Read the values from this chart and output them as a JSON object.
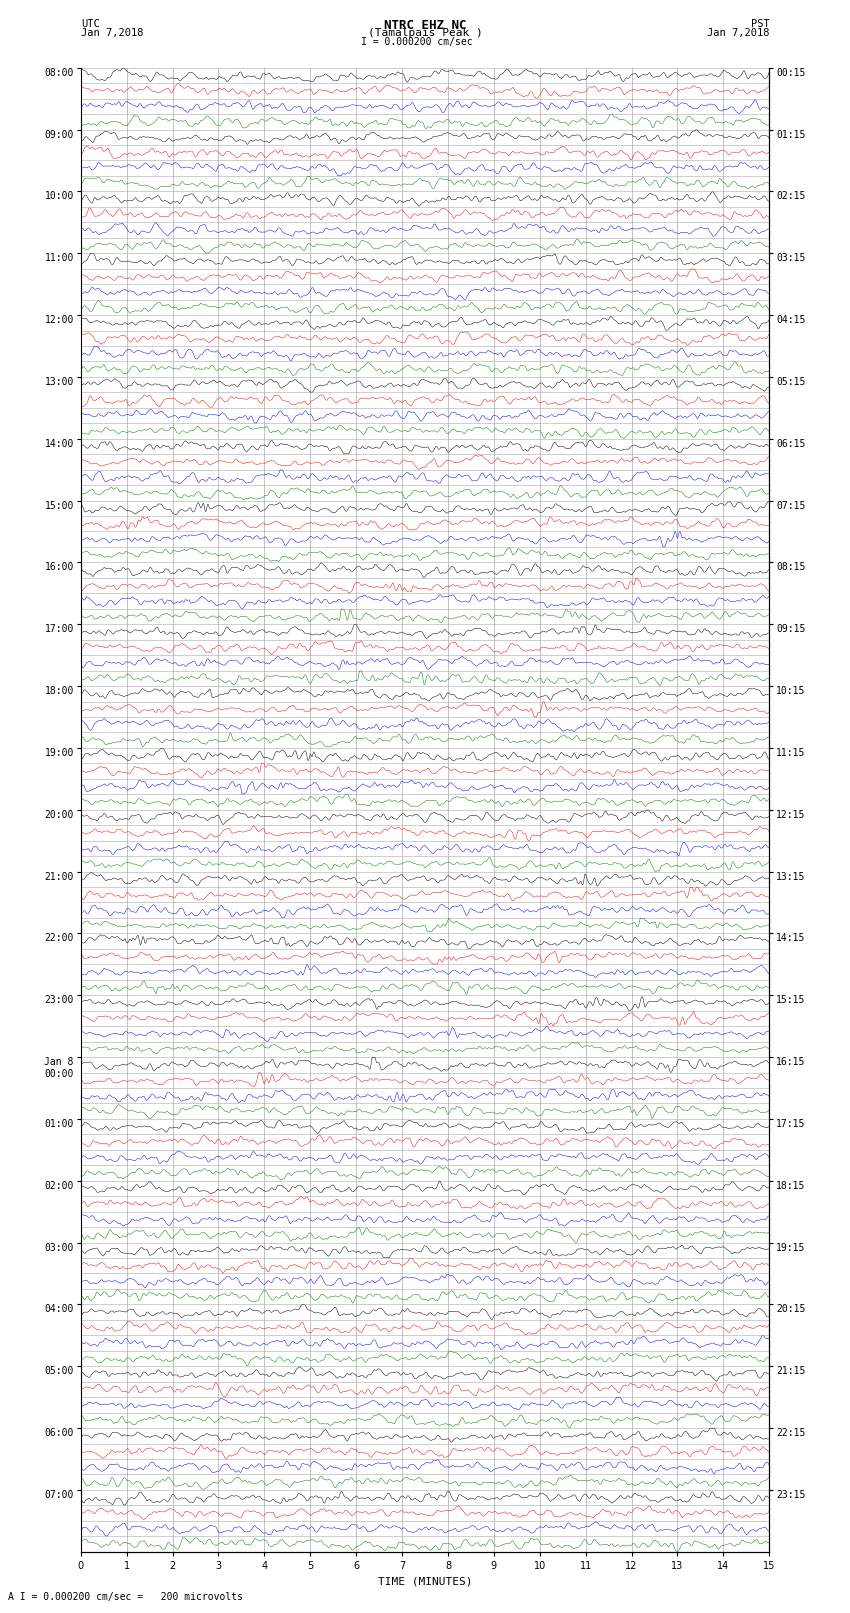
{
  "title_line1": "NTRC EHZ NC",
  "title_line2": "(Tamalpais Peak )",
  "title_scale": "I = 0.000200 cm/sec",
  "label_left_top": "UTC",
  "label_left_date": "Jan 7,2018",
  "label_right_top": "PST",
  "label_right_date": "Jan 7,2018",
  "xlabel": "TIME (MINUTES)",
  "footer": "A I = 0.000200 cm/sec =   200 microvolts",
  "num_rows": 24,
  "traces_per_row": 4,
  "minutes_per_row": 15,
  "trace_colors": [
    "black",
    "red",
    "blue",
    "green"
  ],
  "background_color": "white",
  "grid_color": "#aaaaaa",
  "utc_labels": [
    "08:00",
    "09:00",
    "10:00",
    "11:00",
    "12:00",
    "13:00",
    "14:00",
    "15:00",
    "16:00",
    "17:00",
    "18:00",
    "19:00",
    "20:00",
    "21:00",
    "22:00",
    "23:00",
    "Jan 8\n00:00",
    "01:00",
    "02:00",
    "03:00",
    "04:00",
    "05:00",
    "06:00",
    "07:00"
  ],
  "pst_labels": [
    "00:15",
    "01:15",
    "02:15",
    "03:15",
    "04:15",
    "05:15",
    "06:15",
    "07:15",
    "08:15",
    "09:15",
    "10:15",
    "11:15",
    "12:15",
    "13:15",
    "14:15",
    "15:15",
    "16:15",
    "17:15",
    "18:15",
    "19:15",
    "20:15",
    "21:15",
    "22:15",
    "23:15"
  ]
}
